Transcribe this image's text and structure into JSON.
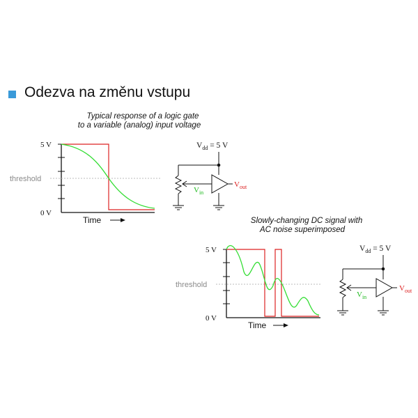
{
  "slide": {
    "heading": "Odezva na změnu vstupu",
    "bullet_color": "#3a9ad9"
  },
  "colors": {
    "signal": "#33dd33",
    "output": "#dd2222",
    "axis": "#111111",
    "threshold_line": "#bbbbbb",
    "threshold_label": "#8a8a8a",
    "vin_label": "#22bb22",
    "vout_label": "#dd2222"
  },
  "diagram1": {
    "caption_line1": "Typical response of a logic gate",
    "caption_line2": "to a variable (analog) input voltage",
    "y_top_label": "5 V",
    "y_bottom_label": "0 V",
    "threshold_label": "threshold",
    "x_label": "Time",
    "circuit": {
      "vdd_label": "V",
      "vdd_sub": "dd",
      "vdd_value": " = 5 V",
      "vin_label": "V",
      "vin_sub": "in",
      "vout_label": "V",
      "vout_sub": "out"
    }
  },
  "diagram2": {
    "caption_line1": "Slowly-changing DC signal with",
    "caption_line2": "AC noise superimposed",
    "y_top_label": "5 V",
    "y_bottom_label": "0 V",
    "threshold_label": "threshold",
    "x_label": "Time",
    "circuit": {
      "vdd_label": "V",
      "vdd_sub": "dd",
      "vdd_value": " = 5 V",
      "vin_label": "V",
      "vin_sub": "in",
      "vout_label": "V",
      "vout_sub": "out"
    }
  }
}
